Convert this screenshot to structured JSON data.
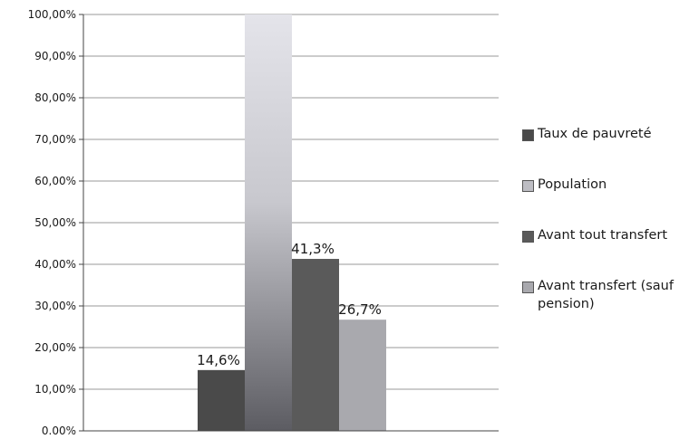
{
  "chart_data": {
    "type": "bar",
    "categories": [
      ""
    ],
    "series": [
      {
        "name": "Taux de pauvreté",
        "values": [
          14.6
        ],
        "label": "14,6%",
        "color": "#4a4a4a"
      },
      {
        "name": "Population",
        "values": [
          100
        ],
        "label": "",
        "color": "#d4d4d8"
      },
      {
        "name": "Avant tout transfert",
        "values": [
          41.3
        ],
        "label": "41,3%",
        "color": "#5a5a5a"
      },
      {
        "name": "Avant transfert (sauf pension)",
        "values": [
          26.7
        ],
        "label": "26,7%",
        "color": "#a9a9ae"
      }
    ],
    "ylim": [
      0,
      100
    ],
    "yticks": [
      "0.00%",
      "10,00%",
      "20,00%",
      "30,00%",
      "40,00%",
      "50,00%",
      "60,00%",
      "70,00%",
      "80,00%",
      "90,00%",
      "100,00%"
    ],
    "grid": true,
    "legend": "right",
    "title": "",
    "xlabel": "",
    "ylabel": ""
  }
}
